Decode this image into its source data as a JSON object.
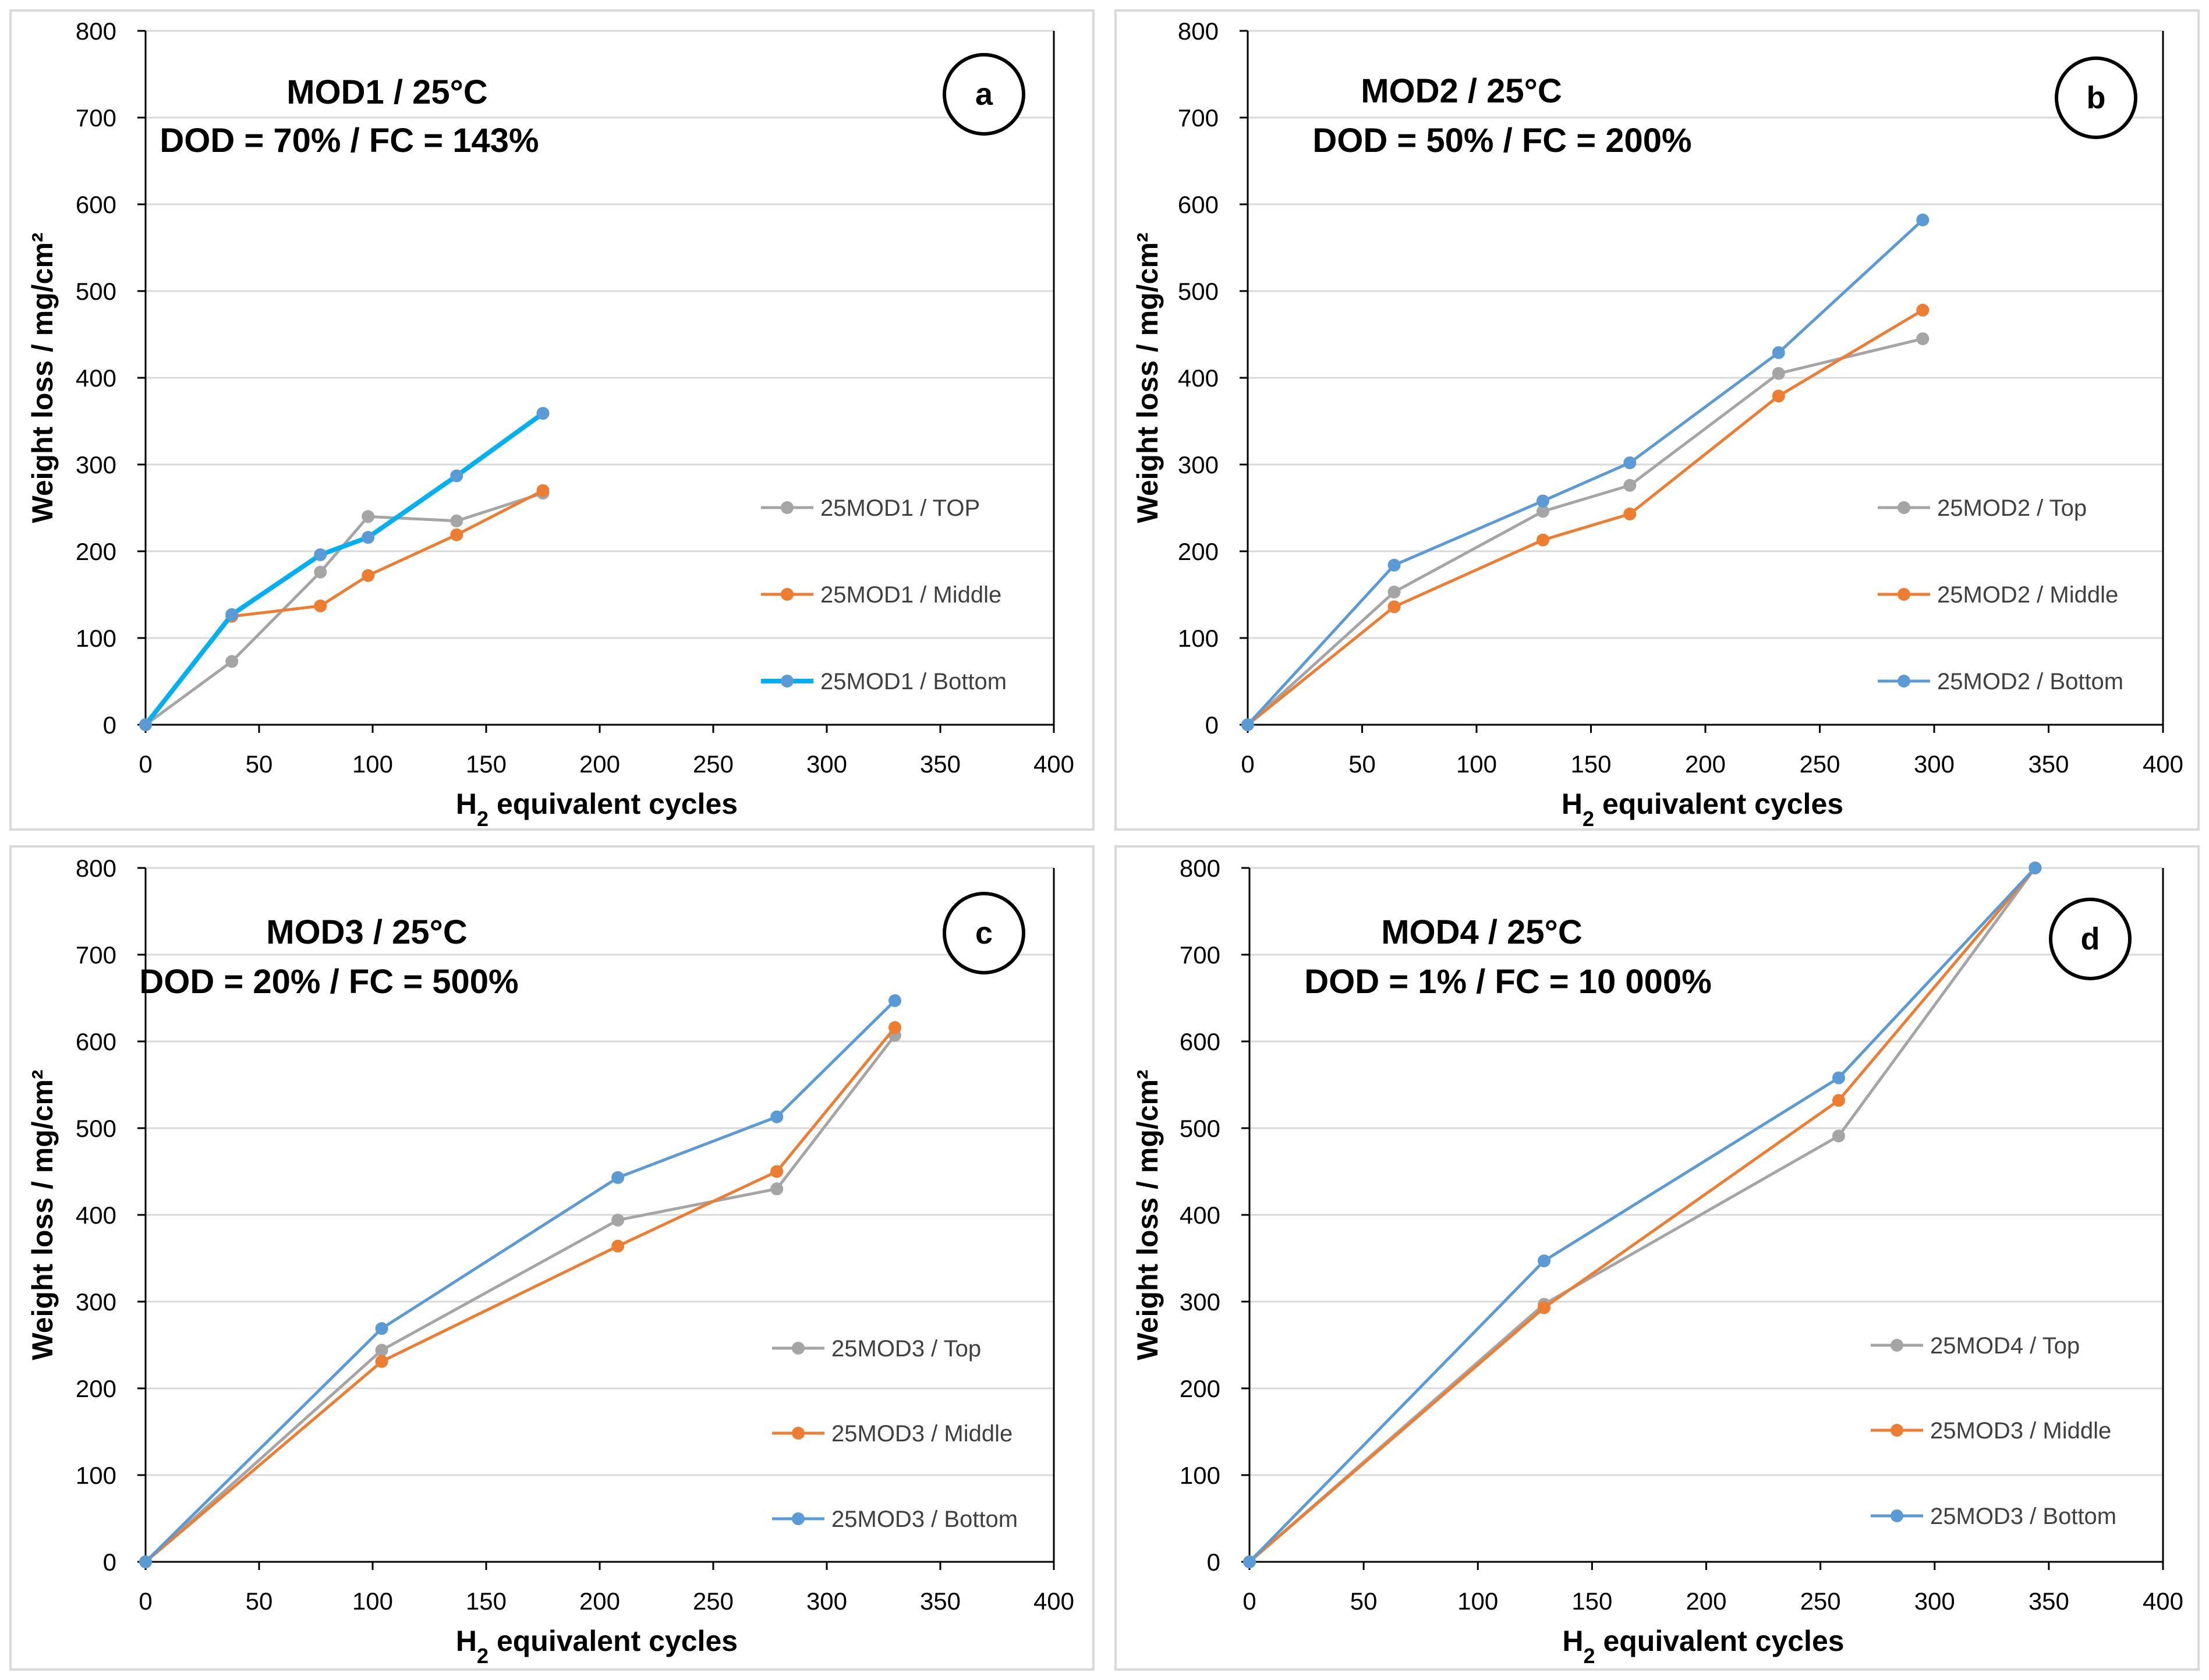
{
  "colors": {
    "top": "#A5A5A5",
    "middle": "#ED7D31",
    "bottom": "#5B9BD5",
    "bottom_bright": "#00B0F0",
    "frame": "#D9D9D9",
    "grid": "#D9D9D9",
    "axis": "#000000"
  },
  "common": {
    "ylabel": "Weight loss / mg/cm²",
    "xlabel_main": "H",
    "xlabel_sub": "2",
    "xlabel_rest": " equivalent cycles",
    "x_ticks": [
      "0",
      "50",
      "100",
      "150",
      "200",
      "250",
      "300",
      "350",
      "400"
    ],
    "y_ticks": [
      "0",
      "100",
      "200",
      "300",
      "400",
      "500",
      "600",
      "700",
      "800"
    ]
  },
  "chart_data": [
    {
      "type": "line",
      "panel_label": "a",
      "title_line1": "MOD1 / 25°C",
      "title_line2": "DOD = 70% / FC = 143%",
      "xlim": [
        0,
        400
      ],
      "ylim": [
        0,
        800
      ],
      "series": [
        {
          "key": "top",
          "name": "25MOD1 / TOP",
          "color": "#A5A5A5",
          "width": 5,
          "points": [
            [
              0,
              0
            ],
            [
              38,
              73
            ],
            [
              77,
              176
            ],
            [
              98,
              240
            ],
            [
              137,
              235
            ],
            [
              175,
              267
            ]
          ]
        },
        {
          "key": "middle",
          "name": "25MOD1 / Middle",
          "color": "#ED7D31",
          "width": 5,
          "points": [
            [
              0,
              0
            ],
            [
              38,
              125
            ],
            [
              77,
              137
            ],
            [
              98,
              172
            ],
            [
              137,
              219
            ],
            [
              175,
              270
            ]
          ]
        },
        {
          "key": "bottom",
          "name": "25MOD1 / Bottom",
          "color": "#00B0F0",
          "width": 8,
          "marker": "#5B9BD5",
          "points": [
            [
              0,
              0
            ],
            [
              38,
              127
            ],
            [
              77,
              196
            ],
            [
              98,
              216
            ],
            [
              137,
              287
            ],
            [
              175,
              359
            ]
          ]
        }
      ]
    },
    {
      "type": "line",
      "panel_label": "b",
      "title_line1": "MOD2 / 25°C",
      "title_line2": "DOD = 50% / FC = 200%",
      "xlim": [
        0,
        400
      ],
      "ylim": [
        0,
        800
      ],
      "series": [
        {
          "key": "top",
          "name": "25MOD2 / Top",
          "color": "#A5A5A5",
          "width": 5,
          "points": [
            [
              0,
              0
            ],
            [
              64,
              153
            ],
            [
              129,
              246
            ],
            [
              167,
              276
            ],
            [
              232,
              405
            ],
            [
              295,
              445
            ]
          ]
        },
        {
          "key": "middle",
          "name": "25MOD2 / Middle",
          "color": "#ED7D31",
          "width": 5,
          "points": [
            [
              0,
              0
            ],
            [
              64,
              136
            ],
            [
              129,
              213
            ],
            [
              167,
              243
            ],
            [
              232,
              379
            ],
            [
              295,
              478
            ]
          ]
        },
        {
          "key": "bottom",
          "name": "25MOD2 / Bottom",
          "color": "#5B9BD5",
          "width": 5,
          "points": [
            [
              0,
              0
            ],
            [
              64,
              184
            ],
            [
              129,
              258
            ],
            [
              167,
              302
            ],
            [
              232,
              429
            ],
            [
              295,
              582
            ]
          ]
        }
      ]
    },
    {
      "type": "line",
      "panel_label": "c",
      "title_line1": "MOD3 / 25°C",
      "title_line2": "DOD = 20% / FC = 500%",
      "xlim": [
        0,
        400
      ],
      "ylim": [
        0,
        800
      ],
      "series": [
        {
          "key": "top",
          "name": "25MOD3 / Top",
          "color": "#A5A5A5",
          "width": 5,
          "points": [
            [
              0,
              0
            ],
            [
              104,
              244
            ],
            [
              208,
              394
            ],
            [
              278,
              430
            ],
            [
              330,
              607
            ]
          ]
        },
        {
          "key": "middle",
          "name": "25MOD3 / Middle",
          "color": "#ED7D31",
          "width": 5,
          "points": [
            [
              0,
              0
            ],
            [
              104,
              231
            ],
            [
              208,
              364
            ],
            [
              278,
              450
            ],
            [
              330,
              616
            ]
          ]
        },
        {
          "key": "bottom",
          "name": "25MOD3 / Bottom",
          "color": "#5B9BD5",
          "width": 5,
          "points": [
            [
              0,
              0
            ],
            [
              104,
              269
            ],
            [
              208,
              443
            ],
            [
              278,
              513
            ],
            [
              330,
              647
            ]
          ]
        }
      ]
    },
    {
      "type": "line",
      "panel_label": "d",
      "title_line1": "MOD4 / 25°C",
      "title_line2": "DOD = 1% / FC = 10 000%",
      "xlim": [
        0,
        400
      ],
      "ylim": [
        0,
        800
      ],
      "series": [
        {
          "key": "top",
          "name": "25MOD4 / Top",
          "color": "#A5A5A5",
          "width": 5,
          "points": [
            [
              0,
              0
            ],
            [
              129,
              297
            ],
            [
              258,
              491
            ],
            [
              344,
              800
            ]
          ]
        },
        {
          "key": "middle",
          "name": "25MOD3 / Middle",
          "color": "#ED7D31",
          "width": 5,
          "points": [
            [
              0,
              0
            ],
            [
              129,
              293
            ],
            [
              258,
              532
            ],
            [
              344,
              800
            ]
          ]
        },
        {
          "key": "bottom",
          "name": "25MOD3 / Bottom",
          "color": "#5B9BD5",
          "width": 5,
          "points": [
            [
              0,
              0
            ],
            [
              129,
              347
            ],
            [
              258,
              558
            ],
            [
              344,
              800
            ]
          ]
        }
      ]
    }
  ]
}
